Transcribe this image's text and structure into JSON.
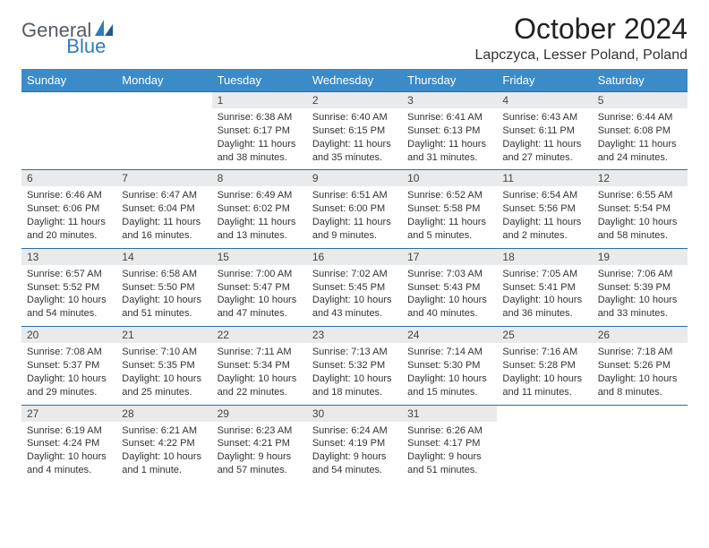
{
  "logo": {
    "part1": "General",
    "part2": "Blue"
  },
  "title": "October 2024",
  "location": "Lapczyca, Lesser Poland, Poland",
  "colors": {
    "header_bg": "#3b8bc9",
    "daynum_bg": "#e9eaeb",
    "rule": "#2b6ea3",
    "logo_blue": "#2f7bbf",
    "logo_gray": "#555b61"
  },
  "weekdays": [
    "Sunday",
    "Monday",
    "Tuesday",
    "Wednesday",
    "Thursday",
    "Friday",
    "Saturday"
  ],
  "weeks": [
    [
      null,
      null,
      {
        "n": "1",
        "sr": "6:38 AM",
        "ss": "6:17 PM",
        "dl": "11 hours and 38 minutes."
      },
      {
        "n": "2",
        "sr": "6:40 AM",
        "ss": "6:15 PM",
        "dl": "11 hours and 35 minutes."
      },
      {
        "n": "3",
        "sr": "6:41 AM",
        "ss": "6:13 PM",
        "dl": "11 hours and 31 minutes."
      },
      {
        "n": "4",
        "sr": "6:43 AM",
        "ss": "6:11 PM",
        "dl": "11 hours and 27 minutes."
      },
      {
        "n": "5",
        "sr": "6:44 AM",
        "ss": "6:08 PM",
        "dl": "11 hours and 24 minutes."
      }
    ],
    [
      {
        "n": "6",
        "sr": "6:46 AM",
        "ss": "6:06 PM",
        "dl": "11 hours and 20 minutes."
      },
      {
        "n": "7",
        "sr": "6:47 AM",
        "ss": "6:04 PM",
        "dl": "11 hours and 16 minutes."
      },
      {
        "n": "8",
        "sr": "6:49 AM",
        "ss": "6:02 PM",
        "dl": "11 hours and 13 minutes."
      },
      {
        "n": "9",
        "sr": "6:51 AM",
        "ss": "6:00 PM",
        "dl": "11 hours and 9 minutes."
      },
      {
        "n": "10",
        "sr": "6:52 AM",
        "ss": "5:58 PM",
        "dl": "11 hours and 5 minutes."
      },
      {
        "n": "11",
        "sr": "6:54 AM",
        "ss": "5:56 PM",
        "dl": "11 hours and 2 minutes."
      },
      {
        "n": "12",
        "sr": "6:55 AM",
        "ss": "5:54 PM",
        "dl": "10 hours and 58 minutes."
      }
    ],
    [
      {
        "n": "13",
        "sr": "6:57 AM",
        "ss": "5:52 PM",
        "dl": "10 hours and 54 minutes."
      },
      {
        "n": "14",
        "sr": "6:58 AM",
        "ss": "5:50 PM",
        "dl": "10 hours and 51 minutes."
      },
      {
        "n": "15",
        "sr": "7:00 AM",
        "ss": "5:47 PM",
        "dl": "10 hours and 47 minutes."
      },
      {
        "n": "16",
        "sr": "7:02 AM",
        "ss": "5:45 PM",
        "dl": "10 hours and 43 minutes."
      },
      {
        "n": "17",
        "sr": "7:03 AM",
        "ss": "5:43 PM",
        "dl": "10 hours and 40 minutes."
      },
      {
        "n": "18",
        "sr": "7:05 AM",
        "ss": "5:41 PM",
        "dl": "10 hours and 36 minutes."
      },
      {
        "n": "19",
        "sr": "7:06 AM",
        "ss": "5:39 PM",
        "dl": "10 hours and 33 minutes."
      }
    ],
    [
      {
        "n": "20",
        "sr": "7:08 AM",
        "ss": "5:37 PM",
        "dl": "10 hours and 29 minutes."
      },
      {
        "n": "21",
        "sr": "7:10 AM",
        "ss": "5:35 PM",
        "dl": "10 hours and 25 minutes."
      },
      {
        "n": "22",
        "sr": "7:11 AM",
        "ss": "5:34 PM",
        "dl": "10 hours and 22 minutes."
      },
      {
        "n": "23",
        "sr": "7:13 AM",
        "ss": "5:32 PM",
        "dl": "10 hours and 18 minutes."
      },
      {
        "n": "24",
        "sr": "7:14 AM",
        "ss": "5:30 PM",
        "dl": "10 hours and 15 minutes."
      },
      {
        "n": "25",
        "sr": "7:16 AM",
        "ss": "5:28 PM",
        "dl": "10 hours and 11 minutes."
      },
      {
        "n": "26",
        "sr": "7:18 AM",
        "ss": "5:26 PM",
        "dl": "10 hours and 8 minutes."
      }
    ],
    [
      {
        "n": "27",
        "sr": "6:19 AM",
        "ss": "4:24 PM",
        "dl": "10 hours and 4 minutes."
      },
      {
        "n": "28",
        "sr": "6:21 AM",
        "ss": "4:22 PM",
        "dl": "10 hours and 1 minute."
      },
      {
        "n": "29",
        "sr": "6:23 AM",
        "ss": "4:21 PM",
        "dl": "9 hours and 57 minutes."
      },
      {
        "n": "30",
        "sr": "6:24 AM",
        "ss": "4:19 PM",
        "dl": "9 hours and 54 minutes."
      },
      {
        "n": "31",
        "sr": "6:26 AM",
        "ss": "4:17 PM",
        "dl": "9 hours and 51 minutes."
      },
      null,
      null
    ]
  ],
  "labels": {
    "sunrise": "Sunrise:",
    "sunset": "Sunset:",
    "daylight": "Daylight:"
  }
}
